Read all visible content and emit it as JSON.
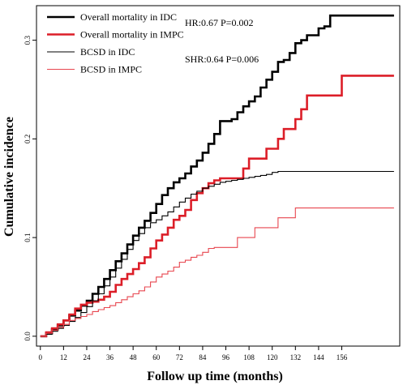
{
  "chart_data": {
    "type": "line",
    "xlabel": "Follow up time (months)",
    "ylabel": "Cumulative incidence",
    "xlim": [
      -2,
      186
    ],
    "ylim": [
      -0.01,
      0.335
    ],
    "xticks": [
      0,
      12,
      24,
      36,
      48,
      60,
      72,
      84,
      96,
      108,
      120,
      132,
      144,
      156
    ],
    "xtick_labels": [
      "0",
      "12",
      "24",
      "36",
      "48",
      "60",
      "72",
      "84",
      "96",
      "108",
      "120",
      "132",
      "144",
      "156"
    ],
    "yticks": [
      0.0,
      0.1,
      0.2,
      0.3
    ],
    "ytick_labels": [
      "0.0",
      "0.1",
      "0.2",
      "0.3"
    ],
    "grid": false,
    "legend": "top-left",
    "annotations": [
      "HR:0.67 P=0.002",
      "SHR:0.64 P=0.006"
    ],
    "series": [
      {
        "name": "Overall mortality  in IDC",
        "color": "#000000",
        "weight": "thick",
        "x": [
          0,
          3,
          6,
          9,
          12,
          15,
          18,
          21,
          24,
          27,
          30,
          33,
          36,
          39,
          42,
          45,
          48,
          51,
          54,
          57,
          60,
          63,
          66,
          69,
          72,
          75,
          78,
          81,
          84,
          87,
          90,
          93,
          96,
          99,
          102,
          105,
          108,
          111,
          114,
          117,
          120,
          123,
          126,
          129,
          132,
          135,
          138,
          141,
          144,
          147,
          150,
          153,
          156,
          159,
          162,
          165,
          168,
          171,
          174,
          177,
          180,
          183
        ],
        "y": [
          0,
          0.003,
          0.007,
          0.011,
          0.016,
          0.021,
          0.026,
          0.031,
          0.036,
          0.043,
          0.05,
          0.058,
          0.067,
          0.076,
          0.084,
          0.093,
          0.102,
          0.11,
          0.117,
          0.125,
          0.134,
          0.143,
          0.15,
          0.156,
          0.16,
          0.165,
          0.172,
          0.178,
          0.186,
          0.195,
          0.205,
          0.218,
          0.218,
          0.22,
          0.227,
          0.233,
          0.238,
          0.243,
          0.252,
          0.26,
          0.268,
          0.278,
          0.28,
          0.287,
          0.297,
          0.3,
          0.305,
          0.305,
          0.312,
          0.314,
          0.325,
          0.325,
          0.325,
          0.325,
          0.325,
          0.325,
          0.325,
          0.325,
          0.325,
          0.325,
          0.325,
          0.325
        ]
      },
      {
        "name": "Overall mortality  in IMPC",
        "color": "#dc1e28",
        "weight": "thick",
        "x": [
          0,
          3,
          6,
          9,
          12,
          15,
          18,
          21,
          24,
          27,
          30,
          33,
          36,
          39,
          42,
          45,
          48,
          51,
          54,
          57,
          60,
          63,
          66,
          69,
          72,
          75,
          78,
          81,
          84,
          87,
          90,
          93,
          96,
          99,
          102,
          105,
          108,
          111,
          114,
          117,
          120,
          123,
          126,
          129,
          132,
          135,
          138,
          141,
          144,
          147,
          150,
          153,
          156,
          159,
          162,
          165,
          168,
          171,
          174,
          177,
          180,
          183
        ],
        "y": [
          0,
          0.004,
          0.008,
          0.012,
          0.016,
          0.022,
          0.028,
          0.032,
          0.034,
          0.035,
          0.037,
          0.04,
          0.045,
          0.052,
          0.058,
          0.063,
          0.068,
          0.074,
          0.08,
          0.089,
          0.097,
          0.103,
          0.11,
          0.118,
          0.122,
          0.128,
          0.138,
          0.145,
          0.15,
          0.155,
          0.158,
          0.16,
          0.16,
          0.16,
          0.16,
          0.17,
          0.18,
          0.18,
          0.18,
          0.19,
          0.19,
          0.2,
          0.21,
          0.21,
          0.22,
          0.23,
          0.244,
          0.244,
          0.244,
          0.244,
          0.244,
          0.244,
          0.264,
          0.264,
          0.264,
          0.264,
          0.264,
          0.264,
          0.264,
          0.264,
          0.264,
          0.264
        ]
      },
      {
        "name": "BCSD  in IDC",
        "color": "#000000",
        "weight": "thin",
        "x": [
          0,
          3,
          6,
          9,
          12,
          15,
          18,
          21,
          24,
          27,
          30,
          33,
          36,
          39,
          42,
          45,
          48,
          51,
          54,
          57,
          60,
          63,
          66,
          69,
          72,
          75,
          78,
          81,
          84,
          87,
          90,
          93,
          96,
          99,
          102,
          105,
          108,
          111,
          114,
          117,
          120,
          123,
          126,
          129,
          132,
          135,
          138,
          141,
          144,
          147,
          150,
          153,
          156,
          159,
          162,
          165,
          168,
          171,
          174,
          177,
          180,
          183
        ],
        "y": [
          0,
          0.002,
          0.005,
          0.008,
          0.011,
          0.015,
          0.019,
          0.024,
          0.03,
          0.036,
          0.043,
          0.051,
          0.06,
          0.069,
          0.078,
          0.088,
          0.097,
          0.104,
          0.11,
          0.115,
          0.118,
          0.122,
          0.126,
          0.131,
          0.136,
          0.14,
          0.144,
          0.147,
          0.15,
          0.152,
          0.154,
          0.156,
          0.157,
          0.158,
          0.159,
          0.16,
          0.161,
          0.162,
          0.163,
          0.164,
          0.166,
          0.167,
          0.167,
          0.167,
          0.167,
          0.167,
          0.167,
          0.167,
          0.167,
          0.167,
          0.167,
          0.167,
          0.167,
          0.167,
          0.167,
          0.167,
          0.167,
          0.167,
          0.167,
          0.167,
          0.167,
          0.167
        ]
      },
      {
        "name": "BCSD  in IMPC",
        "color": "#e8464f",
        "weight": "thin",
        "x": [
          0,
          3,
          6,
          9,
          12,
          15,
          18,
          21,
          24,
          27,
          30,
          33,
          36,
          39,
          42,
          45,
          48,
          51,
          54,
          57,
          60,
          63,
          66,
          69,
          72,
          75,
          78,
          81,
          84,
          87,
          90,
          93,
          96,
          99,
          102,
          105,
          108,
          111,
          114,
          117,
          120,
          123,
          126,
          129,
          132,
          135,
          138,
          141,
          144,
          147,
          150,
          153,
          156,
          159,
          162,
          165,
          168,
          171,
          174,
          177,
          180,
          183
        ],
        "y": [
          0,
          0.003,
          0.006,
          0.009,
          0.012,
          0.016,
          0.018,
          0.02,
          0.022,
          0.025,
          0.027,
          0.029,
          0.031,
          0.034,
          0.037,
          0.04,
          0.043,
          0.046,
          0.05,
          0.055,
          0.06,
          0.063,
          0.066,
          0.07,
          0.075,
          0.077,
          0.08,
          0.082,
          0.085,
          0.089,
          0.09,
          0.09,
          0.09,
          0.09,
          0.1,
          0.1,
          0.1,
          0.11,
          0.11,
          0.11,
          0.11,
          0.12,
          0.12,
          0.12,
          0.13,
          0.13,
          0.13,
          0.13,
          0.13,
          0.13,
          0.13,
          0.13,
          0.13,
          0.13,
          0.13,
          0.13,
          0.13,
          0.13,
          0.13,
          0.13,
          0.13,
          0.13
        ]
      }
    ]
  }
}
